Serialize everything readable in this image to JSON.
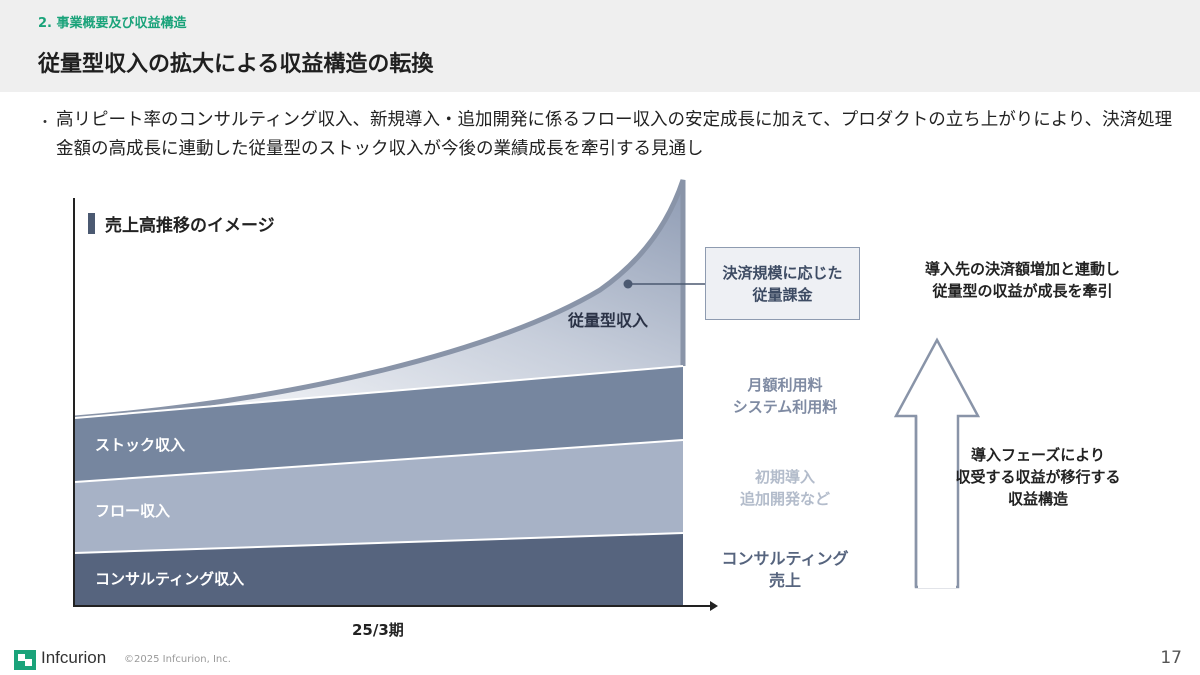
{
  "header": {
    "section_label": "2. 事業概要及び収益構造",
    "title": "従量型収入の拡大による収益構造の転換"
  },
  "intro": {
    "bullet": "・",
    "text": "高リピート率のコンサルティング収入、新規導入・追加開発に係るフロー収入の安定成長に加えて、プロダクトの立ち上がりにより、決済処理金額の高成長に連動した従量型のストック収入が今後の業績成長を牽引する見通し"
  },
  "chart": {
    "heading": "売上高推移のイメージ",
    "layers": {
      "usage": "従量型収入",
      "stock": "ストック収入",
      "flow": "フロー収入",
      "consulting": "コンサルティング収入"
    },
    "x_label": "25/3期",
    "colors": {
      "usage_light": "#dde1ea",
      "usage_dark": "#8e9bb3",
      "stock": "#76869f",
      "flow": "#a7b2c6",
      "consulting": "#56647e",
      "outline": "#8994a8"
    }
  },
  "annotations": {
    "usage_box_line1": "決済規模に応じた",
    "usage_box_line2": "従量課金",
    "stock_line1": "月額利用料",
    "stock_line2": "システム利用料",
    "flow_line1": "初期導入",
    "flow_line2": "追加開発など",
    "consulting_line1": "コンサルティング",
    "consulting_line2": "売上"
  },
  "right_panel": {
    "top_line1": "導入先の決済額増加と連動し",
    "top_line2": "従量型の収益が成長を牽引",
    "bottom_line1": "導入フェーズにより",
    "bottom_line2": "収受する収益が移行する",
    "bottom_line3": "収益構造"
  },
  "footer": {
    "brand": "Infcurion",
    "copyright": "©2025 Infcurion, Inc.",
    "page": "17",
    "brand_color": "#1aa37a"
  }
}
